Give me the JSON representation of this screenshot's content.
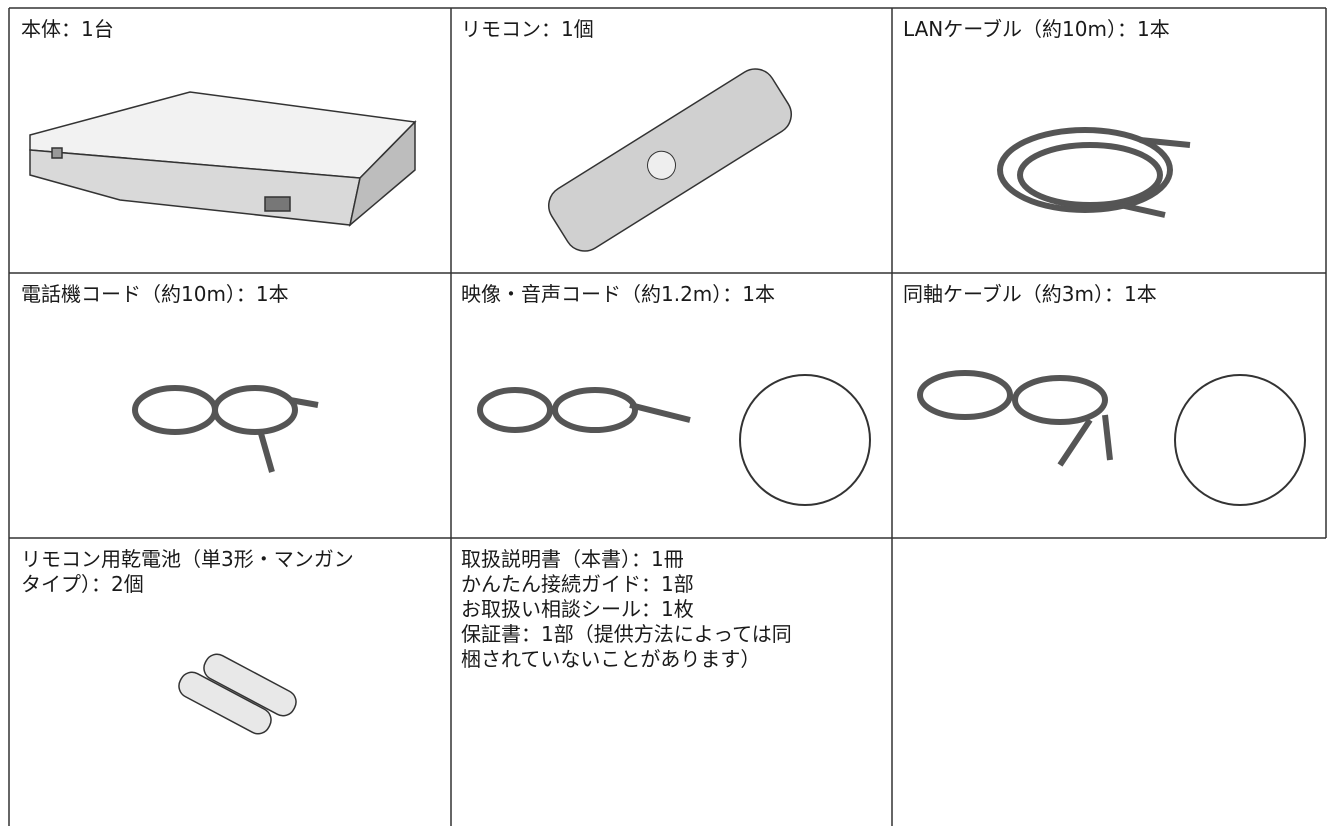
{
  "table": {
    "rows": [
      [
        {
          "lines": [
            "本体：1台"
          ]
        },
        {
          "lines": [
            "リモコン：1個"
          ]
        },
        {
          "lines": [
            "LANケーブル（約10m）：1本"
          ]
        }
      ],
      [
        {
          "lines": [
            "電話機コード（約10m）：1本"
          ]
        },
        {
          "lines": [
            "映像・音声コード（約1.2m）：1本"
          ]
        },
        {
          "lines": [
            "同軸ケーブル（約3m）：1本"
          ]
        }
      ],
      [
        {
          "lines": [
            "リモコン用乾電池（単3形・マンガン",
            "タイプ）：2個"
          ]
        },
        {
          "lines": [
            "取扱説明書（本書）：1冊",
            "かんたん接続ガイド：1部",
            "お取扱い相談シール：1枚",
            "保証書：1部（提供方法によっては同",
            "梱されていないことがあります）"
          ]
        }
      ]
    ]
  }
}
